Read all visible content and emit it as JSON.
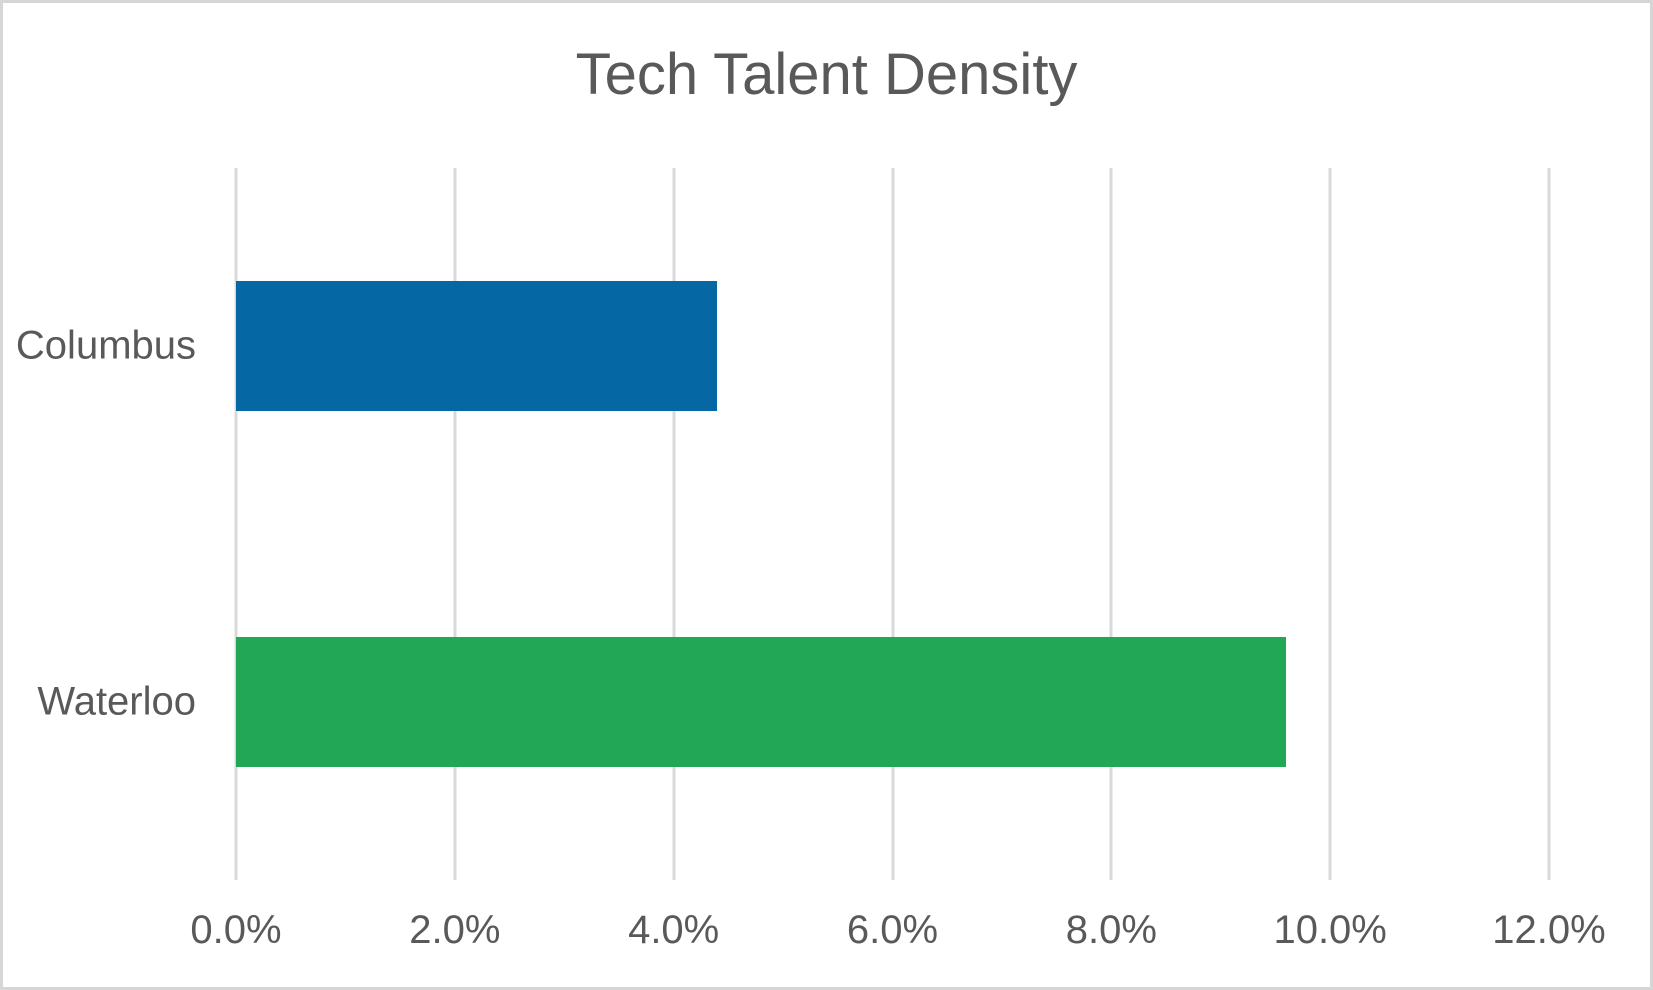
{
  "window": {
    "background": "#ffffff",
    "border_color": "#d6d6d6"
  },
  "chart_data": {
    "type": "bar",
    "orientation": "horizontal",
    "title": "Tech Talent Density",
    "categories": [
      "Columbus",
      "Waterloo"
    ],
    "values": [
      4.4,
      9.6
    ],
    "value_unit": "%",
    "bar_colors": [
      "#0667a5",
      "#21a755"
    ],
    "xlabel": "",
    "ylabel": "",
    "xlim": [
      0,
      12
    ],
    "x_ticks": [
      0,
      2,
      4,
      6,
      8,
      10,
      12
    ],
    "x_tick_labels": [
      "0.0%",
      "2.0%",
      "4.0%",
      "6.0%",
      "8.0%",
      "10.0%",
      "12.0%"
    ],
    "grid": true,
    "gridline_color": "#d9d9d9",
    "text_color": "#595959",
    "legend": "none"
  }
}
